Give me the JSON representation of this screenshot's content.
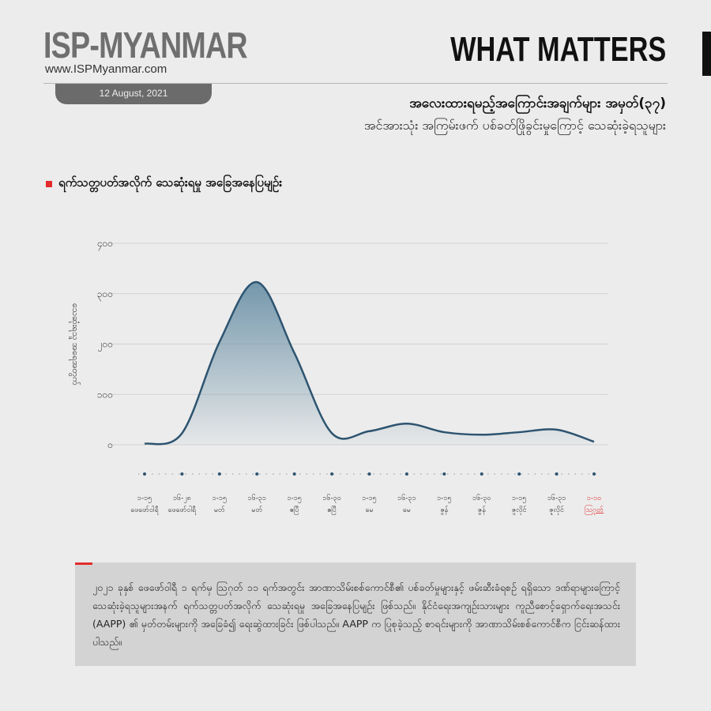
{
  "header": {
    "logo": "ISP-MYANMAR",
    "url": "www.ISPMyanmar.com",
    "date": "12 August, 2021",
    "series_name": "WHAT MATTERS",
    "title": "အလေးထားရမည့်အကြောင်းအချက်များ အမှတ်(၃၇)",
    "subtitle": "အင်အားသုံး အကြမ်းဖက် ပစ်ခတ်ဖြိုခွင်းမှုကြောင့် သေဆုံးခဲ့ရသူများ"
  },
  "section_title": "ရက်သတ္တပတ်အလိုက် သေဆုံးရမှု အခြေအနေပြမျဉ်း",
  "chart_data": {
    "type": "area",
    "ylabel": "သေဆုံးရသူ အရေအတွက်",
    "ylim": [
      0,
      400
    ],
    "yticks": [
      "၀",
      "၁၀၀",
      "၂၀၀",
      "၃၀၀",
      "၄၀၀"
    ],
    "ytick_values": [
      0,
      100,
      200,
      300,
      400
    ],
    "grid": true,
    "categories": [
      {
        "range": "၁-၁၅",
        "month": "ဖေဖော်ဝါရီ"
      },
      {
        "range": "၁၆-၂၈",
        "month": "ဖေဖော်ဝါရီ"
      },
      {
        "range": "၁-၁၅",
        "month": "မတ်"
      },
      {
        "range": "၁၆-၃၁",
        "month": "မတ်"
      },
      {
        "range": "၁-၁၅",
        "month": "ဧပြီ"
      },
      {
        "range": "၁၆-၃၀",
        "month": "ဧပြီ"
      },
      {
        "range": "၁-၁၅",
        "month": "မေ"
      },
      {
        "range": "၁၆-၃၁",
        "month": "မေ"
      },
      {
        "range": "၁-၁၅",
        "month": "ဇွန်"
      },
      {
        "range": "၁၆-၃၀",
        "month": "ဇွန်"
      },
      {
        "range": "၁-၁၅",
        "month": "ဇူလိုင်"
      },
      {
        "range": "၁၆-၃၁",
        "month": "ဇူလိုင်"
      },
      {
        "range": "၁-၁၀",
        "month": "ဩဂုတ်"
      }
    ],
    "values": [
      2,
      23,
      204,
      323,
      182,
      23,
      27,
      42,
      25,
      20,
      25,
      30,
      6
    ],
    "line_color": "#2d5470",
    "fill_color": "#6e93a8",
    "highlight_color": "#e32b2b"
  },
  "note": "၂၀၂၁ ခုနှစ် ဖေဖော်ဝါရီ ၁ ရက်မှ ဩဂုတ် ၁၁ ရက်အတွင်း အာဏာသိမ်းစစ်ကောင်စီ၏ ပစ်ခတ်မှုများနှင့် ဖမ်းဆီးခံရစဉ် ရရှိသော ဒဏ်ရာများကြောင့် သေဆုံးခဲ့ရသူများအနက် ရက်သတ္တပတ်အလိုက် သေဆုံးရမှု အခြေအနေပြမျဉ်း ဖြစ်သည်။ နိုင်ငံရေးအကျဉ်းသားများ ကူညီစောင့်ရှောက်ရေးအသင်း (AAPP) ၏ မှတ်တမ်းများကို အခြေခံ၍ ရေးဆွဲထားခြင်း ဖြစ်ပါသည်။ AAPP က ပြုစုခဲ့သည့် စာရင်းများကို အာဏာသိမ်းစစ်ကောင်စီက ငြင်းဆန်ထားပါသည်။"
}
